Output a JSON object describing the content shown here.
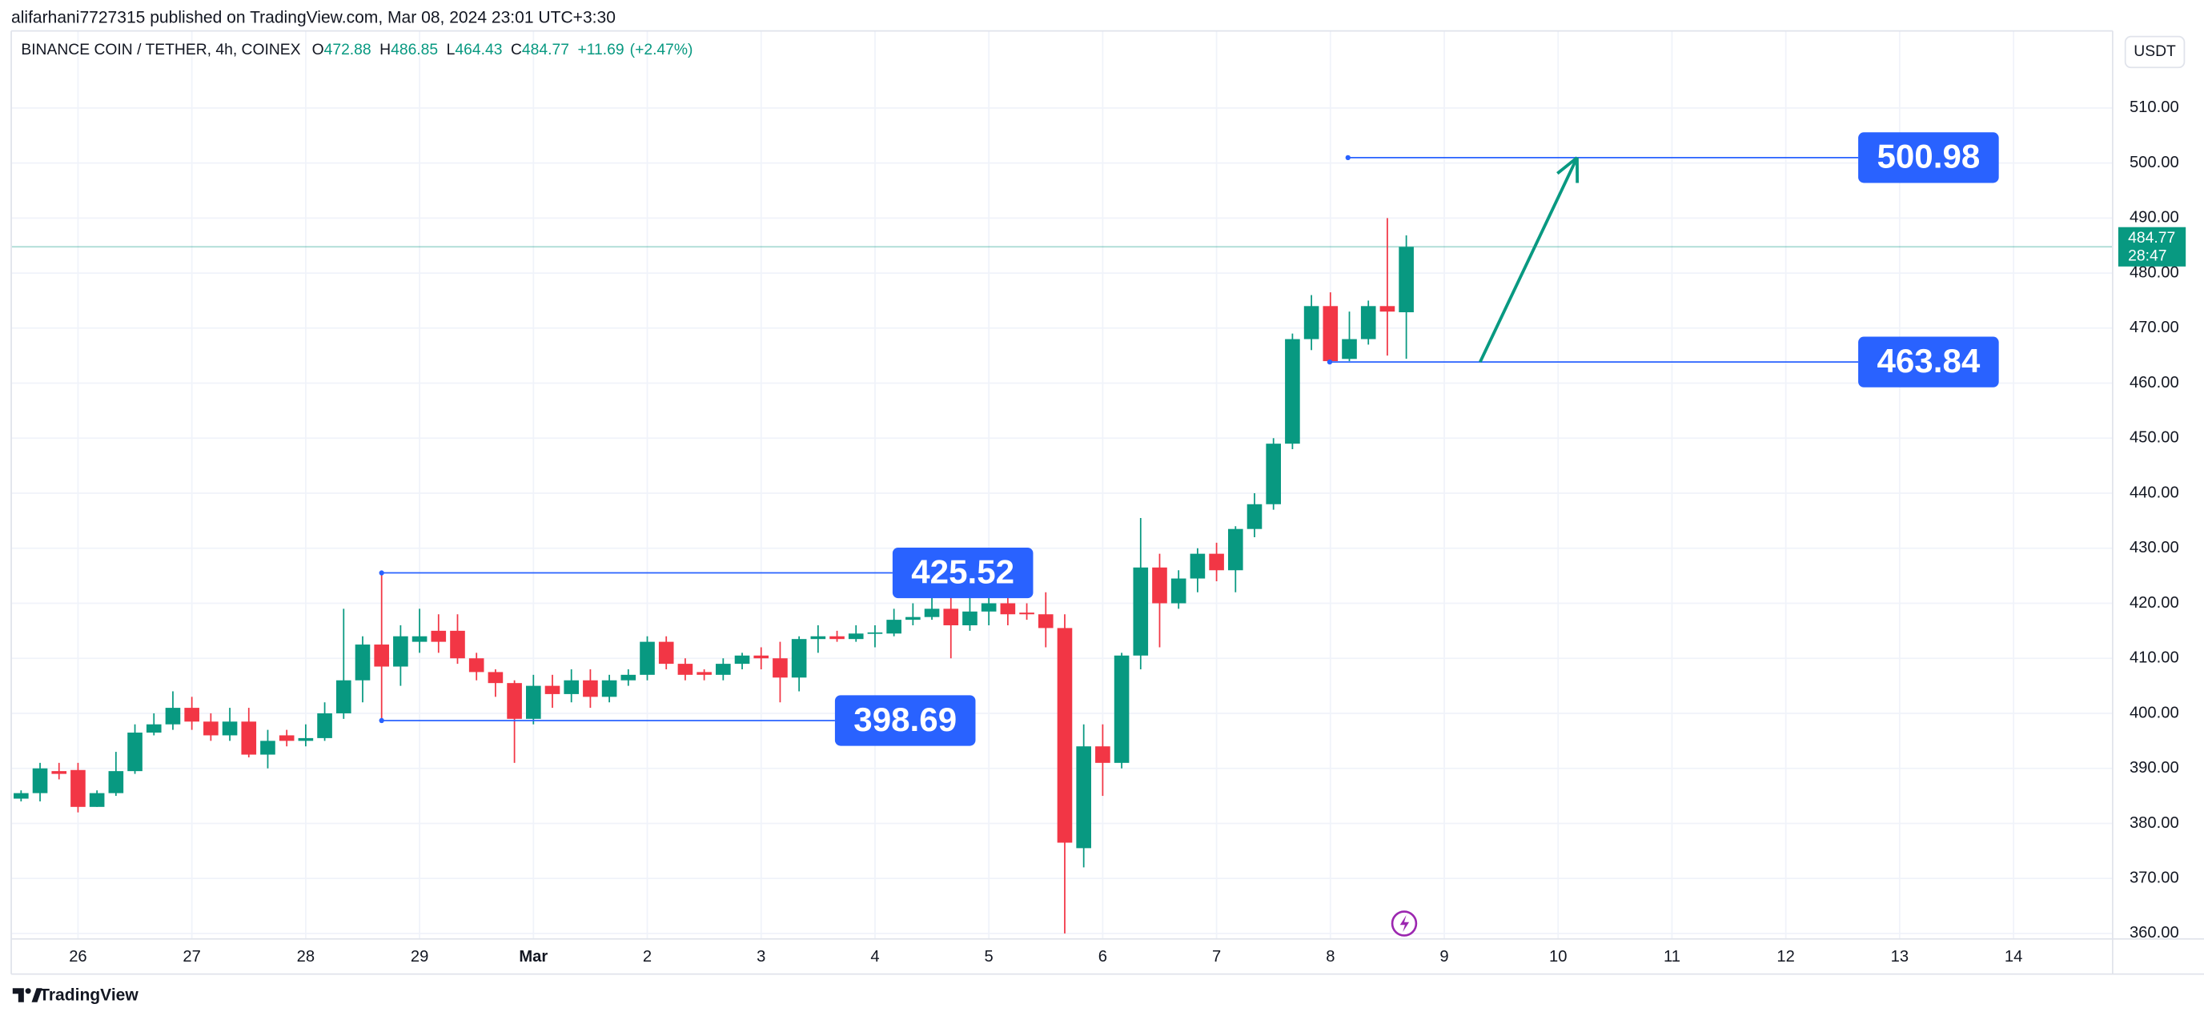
{
  "header": {
    "publisher_line": "alifarhani7727315 published on TradingView.com, Mar 08, 2024 23:01 UTC+3:30",
    "currency": "USDT",
    "countdown": "28:47"
  },
  "footer": {
    "brand": "TradingView"
  },
  "chart_data": {
    "type": "candlestick",
    "symbol": "BINANCE COIN / TETHER, 4h, COINEX",
    "ohlc_labels": [
      "O",
      "H",
      "L",
      "C"
    ],
    "change": {
      "value": 11.69,
      "label": "+11.69"
    },
    "change_percent": {
      "value": 2.47,
      "label": "(+2.47%)"
    },
    "up_color": "#089981",
    "down_color": "#f23645",
    "level_color": "#2962ff",
    "arrow_color": "#089981",
    "levels": [
      425.52,
      398.69,
      500.98,
      463.84
    ],
    "categories": [
      null,
      null,
      null,
      "26",
      null,
      null,
      null,
      null,
      null,
      "27",
      null,
      null,
      null,
      null,
      null,
      "28",
      null,
      null,
      null,
      null,
      null,
      "29",
      null,
      null,
      null,
      null,
      null,
      "Mar",
      null,
      null,
      null,
      null,
      null,
      "2",
      null,
      null,
      null,
      null,
      null,
      "3",
      null,
      null,
      null,
      null,
      null,
      "4",
      null,
      null,
      null,
      null,
      null,
      "5",
      null,
      null,
      null,
      null,
      null,
      "6",
      null,
      null,
      null,
      null,
      null,
      "7",
      null,
      null,
      null,
      null,
      null,
      "8",
      null,
      null,
      null,
      null,
      null,
      "9",
      null,
      null,
      null,
      null,
      null,
      "10",
      null,
      null,
      null,
      null,
      null,
      "11",
      null,
      null,
      null,
      null,
      null,
      "12",
      null,
      null,
      null,
      null,
      null,
      "13",
      null,
      null,
      null,
      null,
      null,
      "14",
      null,
      null,
      null,
      null,
      null
    ],
    "open": [
      384.5,
      385.5,
      389.5,
      389.7,
      383,
      385.5,
      389.5,
      396.5,
      398,
      401,
      398.5,
      396,
      398.5,
      392.5,
      396,
      395,
      395.5,
      400,
      406,
      412.5,
      408.5,
      413,
      415,
      415,
      410,
      407.5,
      405.5,
      399,
      405,
      403.5,
      406,
      403,
      406,
      407,
      413,
      409,
      407.5,
      407,
      409,
      410.5,
      410,
      406.5,
      413.5,
      414,
      413.5,
      414.5,
      414.5,
      417,
      417.5,
      419,
      416,
      418.5,
      420,
      418.3,
      418,
      415.5,
      375.5,
      394,
      391,
      410.5,
      426.5,
      420,
      424.5,
      429,
      426,
      433.5,
      438,
      449,
      468,
      474,
      464.4,
      468,
      474,
      472.88,
      null,
      null,
      null,
      null,
      null,
      null,
      null,
      null,
      null,
      null,
      null,
      null,
      null,
      null,
      null,
      null,
      null,
      null,
      null,
      null,
      null,
      null,
      null,
      null,
      null,
      null,
      null,
      null,
      null,
      null,
      null,
      null,
      null,
      null,
      null,
      null,
      null
    ],
    "high": [
      386,
      391,
      391,
      391,
      386,
      393,
      398,
      400,
      404,
      403,
      400,
      401,
      401,
      397,
      397,
      398,
      402,
      419,
      414,
      425.52,
      416,
      419,
      418,
      418,
      411,
      408,
      406,
      407,
      407,
      408,
      408,
      407,
      408,
      414,
      414,
      410,
      408,
      410,
      411,
      412,
      413,
      414,
      416,
      415,
      416,
      416,
      419,
      420,
      421,
      421,
      421,
      423,
      423,
      420,
      422,
      418,
      398,
      398,
      411,
      435.5,
      429,
      426,
      430,
      431,
      434,
      440,
      450,
      469,
      476,
      476.5,
      473,
      475,
      490,
      486.85,
      null,
      null,
      null,
      null,
      null,
      null,
      null,
      null,
      null,
      null,
      null,
      null,
      null,
      null,
      null,
      null,
      null,
      null,
      null,
      null,
      null,
      null,
      null,
      null,
      null,
      null,
      null,
      null,
      null,
      null,
      null,
      null,
      null,
      null,
      null,
      null,
      null
    ],
    "low": [
      384,
      384,
      388,
      382,
      383,
      385,
      389,
      396,
      397,
      397,
      395,
      395,
      392,
      390,
      394,
      394,
      395,
      399,
      402,
      398.69,
      405,
      411,
      411,
      409,
      406,
      403,
      391,
      398,
      401,
      402,
      401,
      402,
      405,
      406,
      408,
      406,
      406,
      406,
      408,
      408,
      402,
      404,
      411,
      413,
      413,
      412,
      414,
      416,
      417,
      410,
      415,
      416,
      416,
      417,
      412,
      360,
      372,
      385,
      390,
      408,
      412,
      419,
      422,
      424,
      422,
      432,
      437,
      448,
      466,
      463.84,
      464,
      467,
      465,
      464.43,
      null,
      null,
      null,
      null,
      null,
      null,
      null,
      null,
      null,
      null,
      null,
      null,
      null,
      null,
      null,
      null,
      null,
      null,
      null,
      null,
      null,
      null,
      null,
      null,
      null,
      null,
      null,
      null,
      null,
      null,
      null,
      null,
      null,
      null,
      null,
      null,
      null
    ],
    "close": [
      385.5,
      390,
      389,
      383,
      385.5,
      389.5,
      396.5,
      398,
      401,
      398.5,
      396,
      398.5,
      392.5,
      395,
      395,
      395.5,
      400,
      406,
      412.5,
      408.5,
      414,
      414,
      413,
      410,
      407.5,
      405.5,
      399,
      405,
      403.5,
      406,
      403,
      406,
      407,
      413,
      409,
      407,
      407,
      409,
      410.5,
      410,
      406.5,
      413.5,
      414,
      413.5,
      414.5,
      414.7,
      417,
      417.5,
      419,
      416,
      418.5,
      420,
      418,
      418,
      415.5,
      376.5,
      394,
      391,
      410.5,
      426.5,
      420,
      424.5,
      429,
      426,
      433.5,
      438,
      449,
      468,
      474,
      464,
      468,
      474,
      473,
      484.77,
      null,
      null,
      null,
      null,
      null,
      null,
      null,
      null,
      null,
      null,
      null,
      null,
      null,
      null,
      null,
      null,
      null,
      null,
      null,
      null,
      null,
      null,
      null,
      null,
      null,
      null,
      null,
      null,
      null,
      null,
      null,
      null,
      null,
      null,
      null,
      null,
      null
    ],
    "ylim": [
      359,
      524
    ],
    "yticks": [
      {
        "value": 360,
        "label": "360.00"
      },
      {
        "value": 370,
        "label": "370.00"
      },
      {
        "value": 380,
        "label": "380.00"
      },
      {
        "value": 390,
        "label": "390.00"
      },
      {
        "value": 400,
        "label": "400.00"
      },
      {
        "value": 410,
        "label": "410.00"
      },
      {
        "value": 420,
        "label": "420.00"
      },
      {
        "value": 430,
        "label": "430.00"
      },
      {
        "value": 440,
        "label": "440.00"
      },
      {
        "value": 450,
        "label": "450.00"
      },
      {
        "value": 460,
        "label": "460.00"
      },
      {
        "value": 470,
        "label": "470.00"
      },
      {
        "value": 480,
        "label": "480.00"
      },
      {
        "value": 490,
        "label": "490.00"
      },
      {
        "value": 500,
        "label": "500.00"
      },
      {
        "value": 510,
        "label": "510.00"
      }
    ],
    "grid": true
  }
}
